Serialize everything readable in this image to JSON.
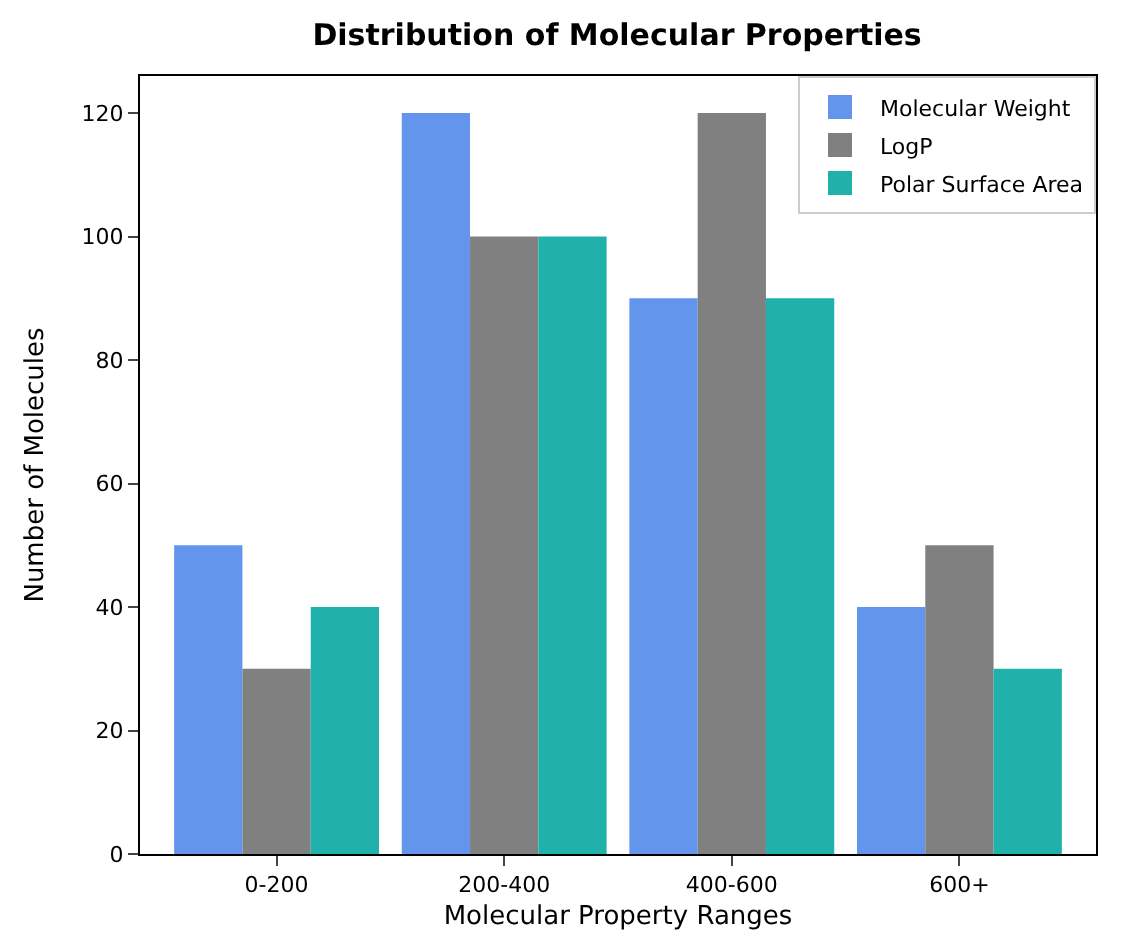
{
  "chart_data": {
    "type": "bar",
    "title": "Distribution of Molecular Properties",
    "xlabel": "Molecular Property Ranges",
    "ylabel": "Number of Molecules",
    "categories": [
      "0-200",
      "200-400",
      "400-600",
      "600+"
    ],
    "series": [
      {
        "name": "Molecular Weight",
        "color": "#6495ed",
        "values": [
          50,
          120,
          90,
          40
        ]
      },
      {
        "name": "LogP",
        "color": "#808080",
        "values": [
          30,
          100,
          120,
          50
        ]
      },
      {
        "name": "Polar Surface Area",
        "color": "#20b2aa",
        "values": [
          40,
          100,
          90,
          30
        ]
      }
    ],
    "ylim": [
      0,
      126
    ],
    "yticks": [
      0,
      20,
      40,
      60,
      80,
      100,
      120
    ],
    "legend": "top right"
  }
}
